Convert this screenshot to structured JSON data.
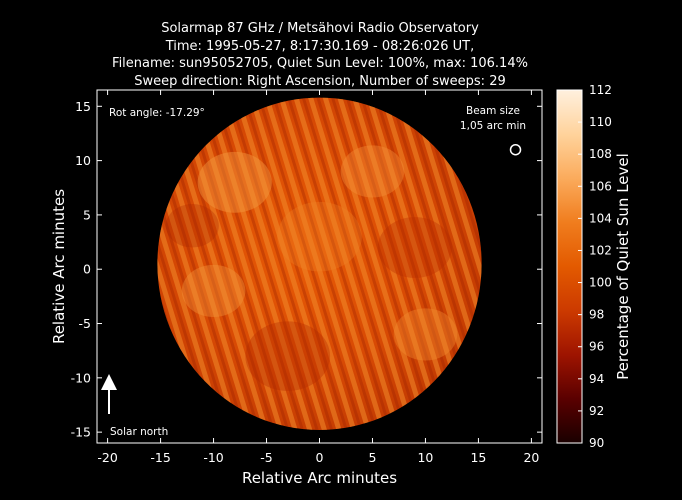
{
  "title_lines": [
    "Solarmap 87 GHz / Metsähovi Radio Observatory",
    "Time: 1995-05-27,  8:17:30.169 - 08:26:026 UT,",
    "Filename: sun95052705, Quiet Sun Level: 100%, max: 106.14%",
    "Sweep direction: Right Ascension, Number of sweeps: 29"
  ],
  "annotations": {
    "rot_angle": "Rot angle: -17.29°",
    "beam_size_line1": "Beam size",
    "beam_size_line2": "1,05 arc min",
    "solar_north": "Solar north"
  },
  "chart_data": {
    "type": "heatmap",
    "xlabel": "Relative Arc minutes",
    "ylabel": "Relative Arc minutes",
    "colorbar_label": "Percentage of Quiet Sun Level",
    "xlim": [
      -21,
      21
    ],
    "ylim": [
      -16,
      16.5
    ],
    "x_ticks": [
      -20,
      -15,
      -10,
      -5,
      0,
      5,
      10,
      15,
      20
    ],
    "y_ticks": [
      -15,
      -10,
      -5,
      0,
      5,
      10,
      15
    ],
    "colorbar_range": [
      90,
      112
    ],
    "colorbar_ticks": [
      90,
      92,
      94,
      96,
      98,
      100,
      102,
      104,
      106,
      108,
      110,
      112
    ],
    "colormap": [
      "#1a0000",
      "#5a0000",
      "#9e1400",
      "#cc3a00",
      "#e35a00",
      "#f07d1e",
      "#fbab5c",
      "#ffd39c",
      "#fff0de"
    ],
    "disk": {
      "center": [
        0,
        0.5
      ],
      "radius": 15.3,
      "typical_level": 101,
      "max": 106.14
    },
    "beam_marker": {
      "x": 18.5,
      "y": 11
    }
  }
}
